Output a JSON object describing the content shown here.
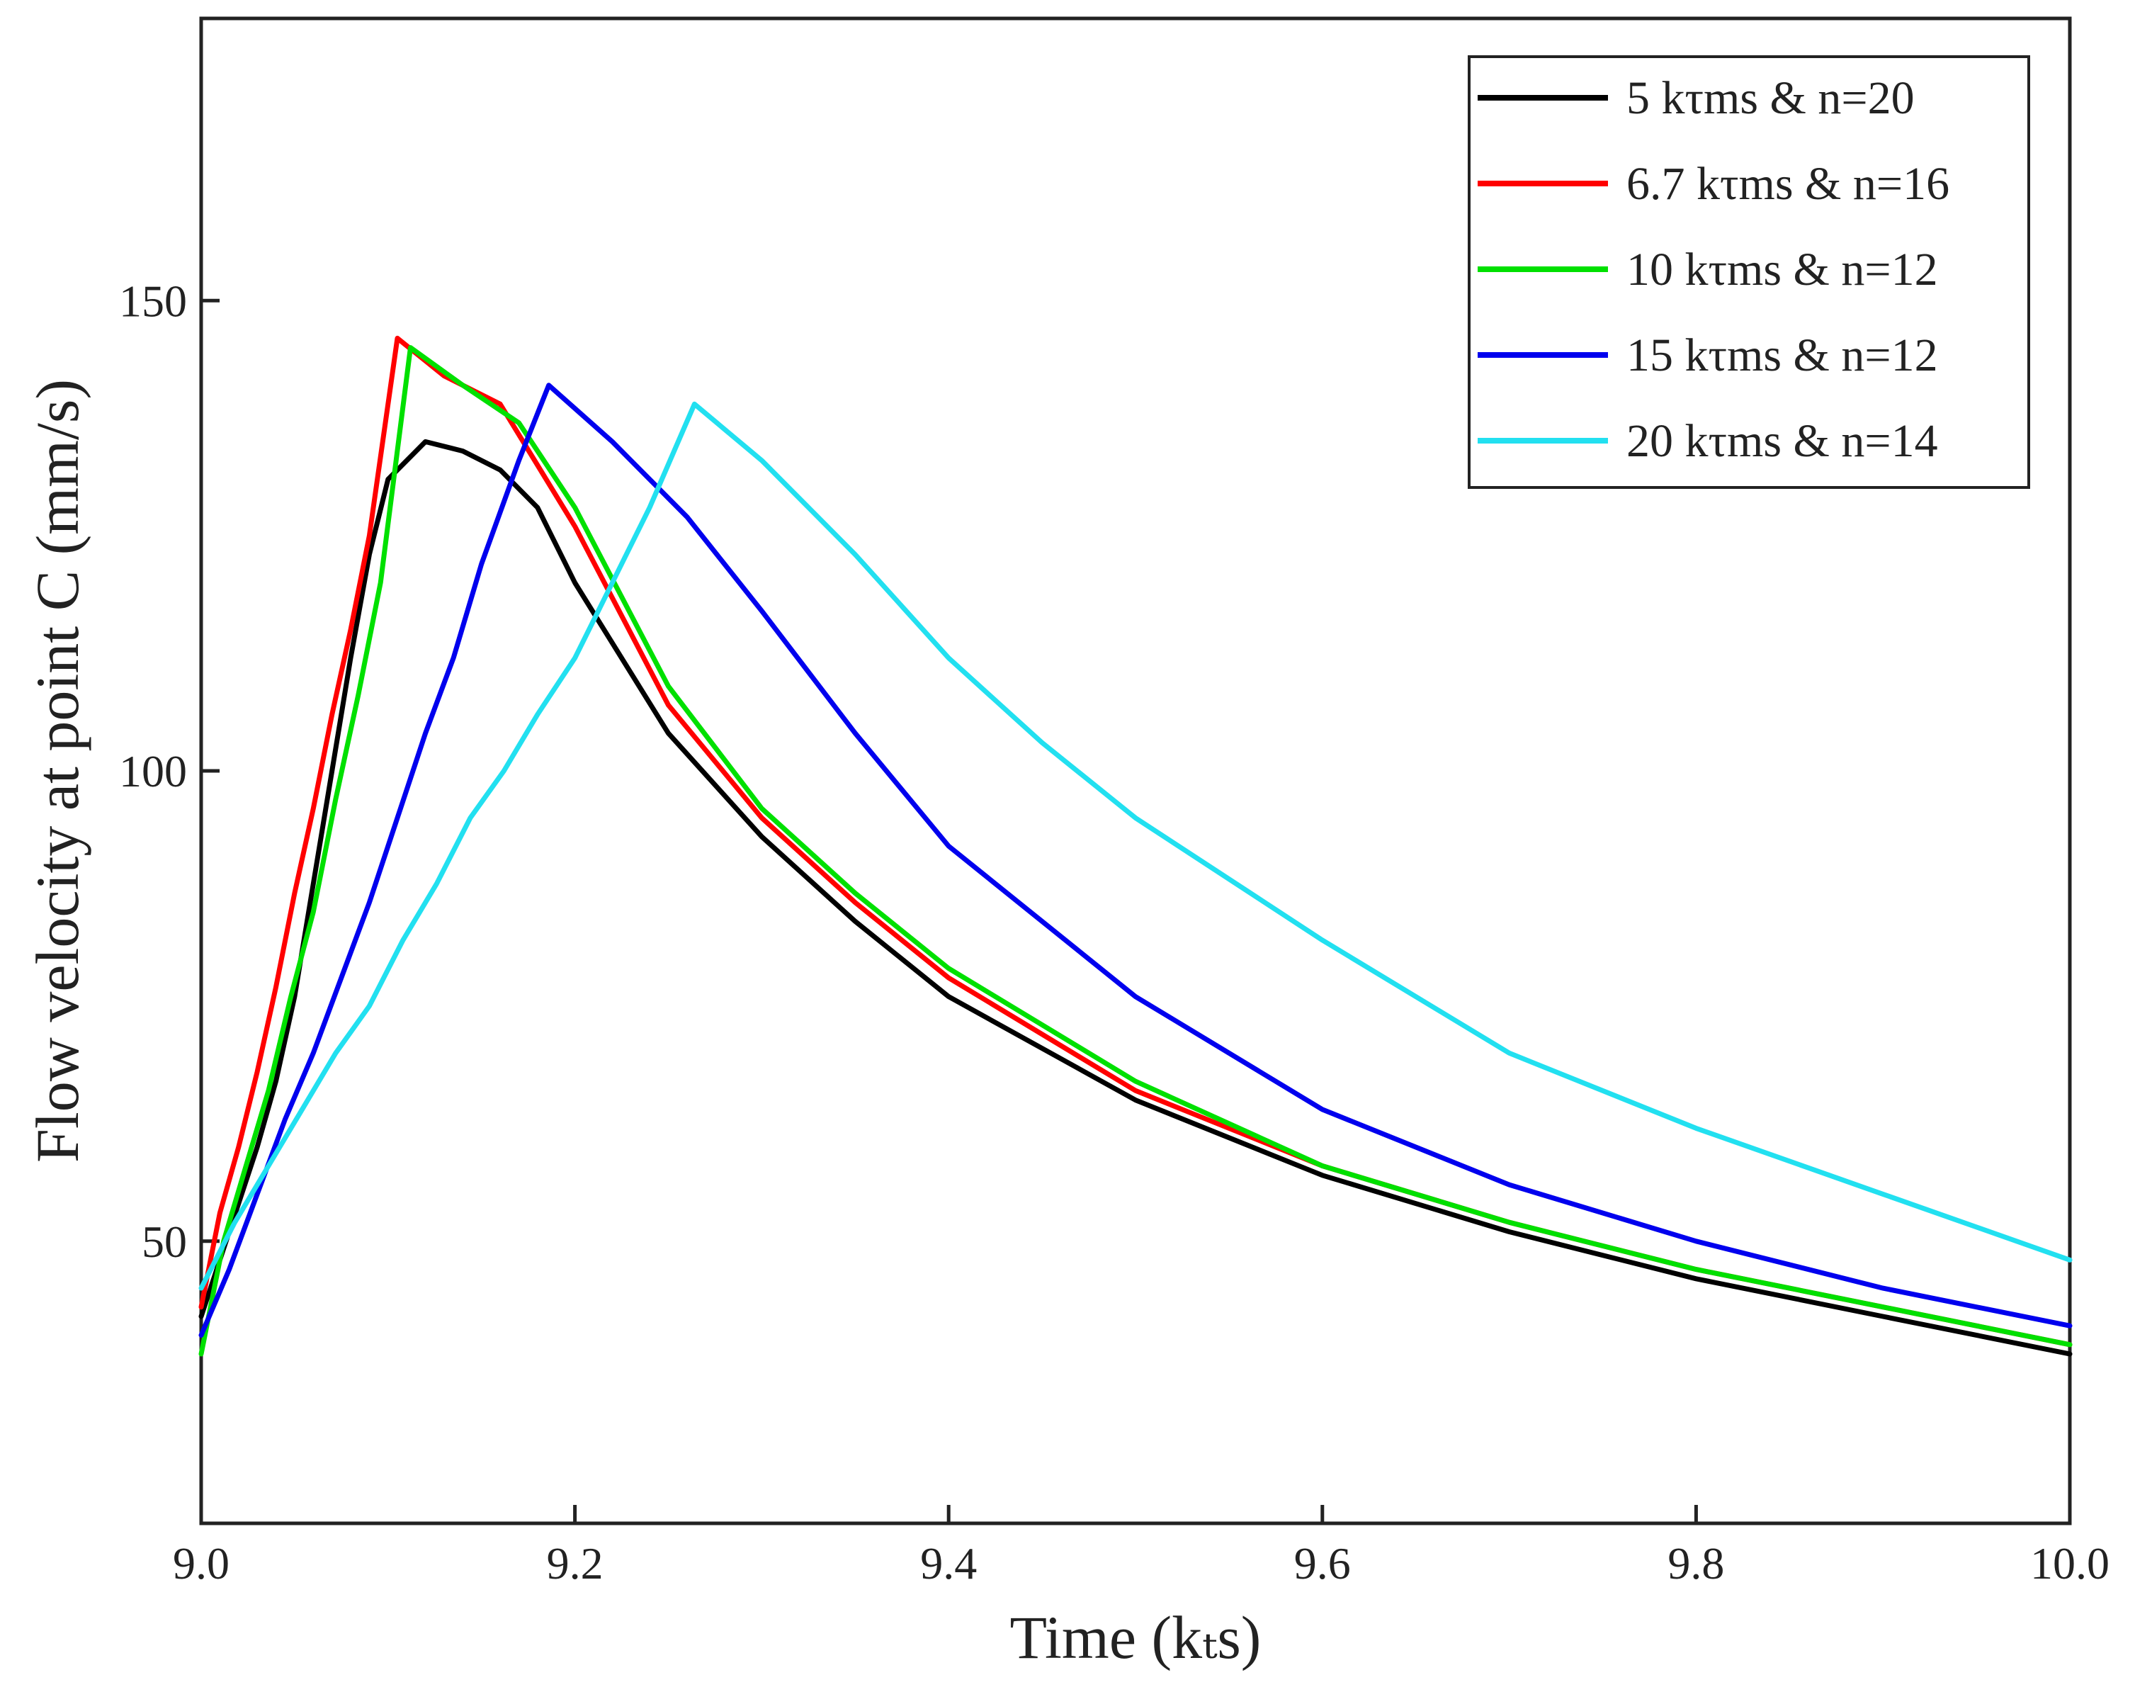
{
  "chart_data": {
    "type": "line",
    "title": "",
    "xlabel": "Time (kₜs)",
    "ylabel": "Flow velocity at point C (mm/s)",
    "xlim": [
      9.0,
      10.0
    ],
    "ylim": [
      20,
      180
    ],
    "xticks": [
      9.0,
      9.2,
      9.4,
      9.6,
      9.8,
      10.0
    ],
    "xtick_labels": [
      "9.0",
      "9.2",
      "9.4",
      "9.6",
      "9.8",
      "10.0"
    ],
    "yticks": [
      50,
      100,
      150
    ],
    "ytick_labels": [
      "50",
      "100",
      "150"
    ],
    "grid": false,
    "legend_position": "top-right",
    "series": [
      {
        "name": "5 kτms & n=20",
        "color": "#000000",
        "x": [
          9.0,
          9.01,
          9.02,
          9.03,
          9.04,
          9.05,
          9.06,
          9.07,
          9.08,
          9.09,
          9.1,
          9.12,
          9.14,
          9.16,
          9.18,
          9.2,
          9.25,
          9.3,
          9.35,
          9.4,
          9.5,
          9.6,
          9.7,
          9.8,
          9.9,
          10.0
        ],
        "values": [
          42,
          48,
          54,
          60,
          67,
          76,
          88,
          100,
          112,
          123,
          131,
          135,
          134,
          132,
          128,
          120,
          104,
          93,
          84,
          76,
          65,
          57,
          51,
          46,
          42,
          38
        ]
      },
      {
        "name": "6.7 kτms & n=16",
        "color": "#ff0000",
        "x": [
          9.0,
          9.01,
          9.02,
          9.03,
          9.04,
          9.05,
          9.06,
          9.07,
          9.08,
          9.09,
          9.105,
          9.13,
          9.16,
          9.2,
          9.25,
          9.3,
          9.35,
          9.4,
          9.5,
          9.6,
          9.7,
          9.8,
          9.9,
          10.0
        ],
        "values": [
          43,
          53,
          60,
          68,
          77,
          87,
          96,
          106,
          115,
          125,
          146,
          142,
          139,
          126,
          107,
          95,
          86,
          78,
          66,
          58,
          52,
          47,
          43,
          39
        ]
      },
      {
        "name": "10 kτms & n=12",
        "color": "#00e000",
        "x": [
          9.0,
          9.012,
          9.024,
          9.036,
          9.048,
          9.06,
          9.072,
          9.084,
          9.096,
          9.112,
          9.14,
          9.17,
          9.2,
          9.25,
          9.3,
          9.35,
          9.4,
          9.5,
          9.6,
          9.7,
          9.8,
          9.9,
          10.0
        ],
        "values": [
          38,
          50,
          58,
          66,
          76,
          85,
          97,
          108,
          120,
          145,
          141,
          137,
          128,
          109,
          96,
          87,
          79,
          67,
          58,
          52,
          47,
          43,
          39
        ]
      },
      {
        "name": "15 kτms & n=12",
        "color": "#0000ee",
        "x": [
          9.0,
          9.015,
          9.03,
          9.045,
          9.06,
          9.075,
          9.09,
          9.105,
          9.12,
          9.135,
          9.15,
          9.17,
          9.186,
          9.22,
          9.26,
          9.3,
          9.35,
          9.4,
          9.5,
          9.6,
          9.7,
          9.8,
          9.9,
          10.0
        ],
        "values": [
          40,
          47,
          55,
          63,
          70,
          78,
          86,
          95,
          104,
          112,
          122,
          133,
          141,
          135,
          127,
          117,
          104,
          92,
          76,
          64,
          56,
          50,
          45,
          41
        ]
      },
      {
        "name": "20 kτms & n=14",
        "color": "#22e0f0",
        "x": [
          9.0,
          9.018,
          9.036,
          9.054,
          9.072,
          9.09,
          9.108,
          9.126,
          9.144,
          9.162,
          9.18,
          9.2,
          9.22,
          9.24,
          9.264,
          9.3,
          9.35,
          9.4,
          9.45,
          9.5,
          9.6,
          9.7,
          9.8,
          9.9,
          10.0
        ],
        "values": [
          45,
          52,
          58,
          64,
          70,
          75,
          82,
          88,
          95,
          100,
          106,
          112,
          120,
          128,
          139,
          133,
          123,
          112,
          103,
          95,
          82,
          70,
          62,
          55,
          48
        ]
      }
    ]
  }
}
